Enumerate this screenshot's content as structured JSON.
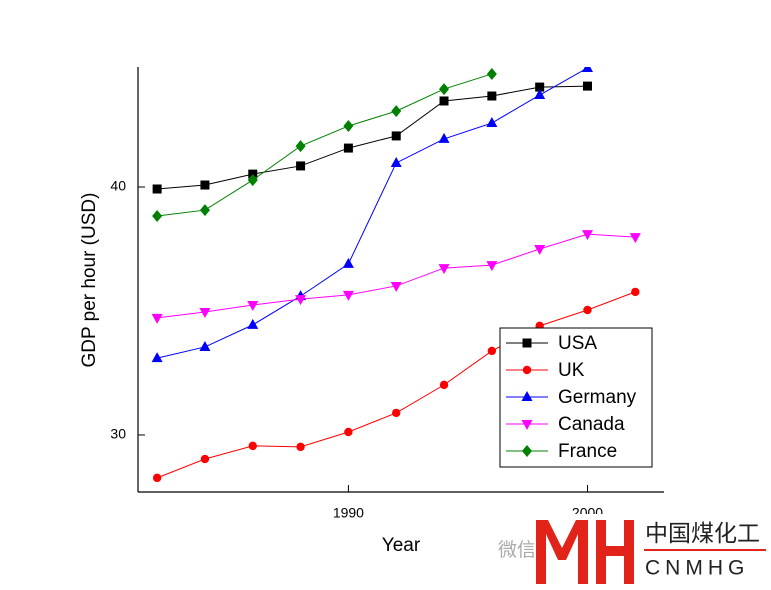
{
  "chart_data": {
    "type": "line",
    "x_label": "Year",
    "y_label": "GDP per hour (USD)",
    "x": [
      1982,
      1984,
      1986,
      1988,
      1990,
      1992,
      1994,
      1996,
      1998,
      2000,
      2002
    ],
    "series": [
      {
        "name": "USA",
        "color": "#000000",
        "marker": "square",
        "values": [
          39.92,
          40.08,
          40.52,
          40.85,
          41.57,
          42.06,
          43.47,
          43.67,
          44.03,
          44.07,
          null
        ]
      },
      {
        "name": "UK",
        "color": "#ff0000",
        "marker": "circle",
        "values": [
          28.27,
          29.03,
          29.56,
          29.52,
          30.12,
          30.89,
          32.02,
          33.39,
          34.4,
          35.04,
          35.77
        ]
      },
      {
        "name": "Germany",
        "color": "#0000ff",
        "marker": "triangle-up",
        "values": [
          33.1,
          33.55,
          34.44,
          35.6,
          36.9,
          40.97,
          41.94,
          42.58,
          43.71,
          44.8,
          null
        ]
      },
      {
        "name": "Canada",
        "color": "#ff00ff",
        "marker": "triangle-down",
        "values": [
          34.72,
          34.96,
          35.24,
          35.48,
          35.65,
          36.01,
          36.73,
          36.85,
          37.5,
          38.1,
          37.98
        ]
      },
      {
        "name": "France",
        "color": "#008000",
        "marker": "diamond",
        "values": [
          38.83,
          39.07,
          40.28,
          41.65,
          42.46,
          43.06,
          43.95,
          44.56,
          null,
          null,
          null
        ]
      }
    ],
    "xlim": [
      1981.2,
      2003.2
    ],
    "xticks": [
      1990,
      2000
    ],
    "ylim": [
      27.7,
      44.84
    ],
    "yticks": [
      30,
      40
    ],
    "legend": "lower-right",
    "grid": false
  },
  "watermark": {
    "wechat": "微信",
    "logo_cn": "中国煤化工",
    "logo_en": "CNMHG"
  }
}
